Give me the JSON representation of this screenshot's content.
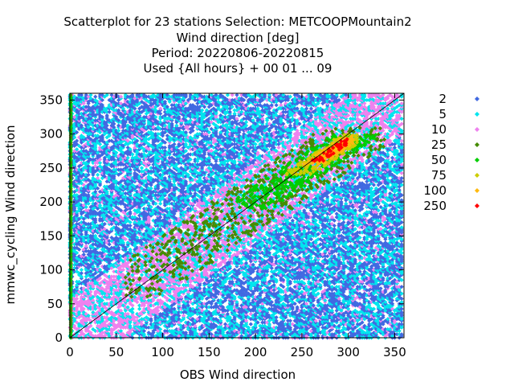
{
  "chart_data": {
    "type": "scatter",
    "title_lines": [
      "Scatterplot for   23 stations Selection: METCOOPMountain2",
      "Wind direction [deg]",
      "Period: 20220806-20220815",
      "Used {All hours} + 00 01 ... 09"
    ],
    "xlabel": "OBS Wind direction",
    "ylabel": "mmwc_cycling Wind direction",
    "xlim": [
      0,
      360
    ],
    "ylim": [
      0,
      360
    ],
    "xticks": [
      0,
      50,
      100,
      150,
      200,
      250,
      300,
      350
    ],
    "yticks": [
      0,
      50,
      100,
      150,
      200,
      250,
      300,
      350
    ],
    "grid": false,
    "diagonal": true,
    "legend_position": "right",
    "legend": [
      {
        "label": "2",
        "color": "#4169e1"
      },
      {
        "label": "5",
        "color": "#00e5ee"
      },
      {
        "label": "10",
        "color": "#ee82ee"
      },
      {
        "label": "25",
        "color": "#458b00"
      },
      {
        "label": "50",
        "color": "#00cd00"
      },
      {
        "label": "75",
        "color": "#cdcd00"
      },
      {
        "label": "100",
        "color": "#ffb90f"
      },
      {
        "label": "250",
        "color": "#ff0000"
      }
    ],
    "dense_regions": [
      {
        "level": "25",
        "x_range": [
          60,
          340
        ],
        "y_range": [
          60,
          310
        ],
        "band": 45
      },
      {
        "level": "50",
        "x_range": [
          180,
          330
        ],
        "y_range": [
          190,
          300
        ],
        "band": 25
      },
      {
        "level": "75",
        "x_range": [
          230,
          310
        ],
        "y_range": [
          240,
          300
        ],
        "band": 15
      },
      {
        "level": "100",
        "x_range": [
          250,
          305
        ],
        "y_range": [
          255,
          300
        ],
        "band": 10
      },
      {
        "level": "250",
        "x_range": [
          255,
          300
        ],
        "y_range": [
          260,
          295
        ],
        "band": 6
      }
    ],
    "edge_column": {
      "x": 1,
      "levels": [
        "25",
        "50"
      ]
    }
  }
}
